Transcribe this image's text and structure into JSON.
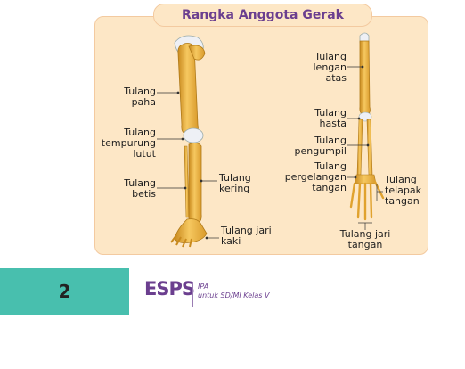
{
  "title": "Rangka Anggota Gerak",
  "leg_labels": {
    "paha": "Tulang\npaha",
    "tempurung": "Tulang\ntempurung\nlutut",
    "betis": "Tulang\nbetis",
    "kering": "Tulang\nkering",
    "jari_kaki": "Tulang jari\nkaki"
  },
  "arm_labels": {
    "lengan_atas": "Tulang\nlengan\natas",
    "hasta": "Tulang\nhasta",
    "pengumpil": "Tulang\npengumpil",
    "pergelangan": "Tulang\npergelangan\ntangan",
    "telapak": "Tulang\ntelapak\ntangan",
    "jari_tangan": "Tulang jari\ntangan"
  },
  "footer": {
    "page_number": "2",
    "logo": "ESPS",
    "subject": "IPA",
    "subtitle": "untuk SD/MI Kelas V"
  },
  "colors": {
    "bone": "#f0b63c",
    "bone_dark": "#c98a1e",
    "panel": "#fde7c6",
    "accent": "#48bfae",
    "brand": "#6b3f8f"
  }
}
